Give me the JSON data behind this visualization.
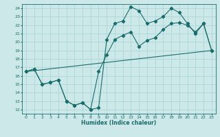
{
  "xlabel": "Humidex (Indice chaleur)",
  "xlim": [
    -0.5,
    23.5
  ],
  "ylim": [
    11.5,
    24.5
  ],
  "xticks": [
    0,
    1,
    2,
    3,
    4,
    5,
    6,
    7,
    8,
    9,
    10,
    11,
    12,
    13,
    14,
    15,
    16,
    17,
    18,
    19,
    20,
    21,
    22,
    23
  ],
  "yticks": [
    12,
    13,
    14,
    15,
    16,
    17,
    18,
    19,
    20,
    21,
    22,
    23,
    24
  ],
  "bg_color": "#cce8e8",
  "grid_color": "#b0d8d8",
  "line_color": "#1a6b6b",
  "line1_x": [
    0,
    1,
    2,
    3,
    4,
    5,
    6,
    7,
    8,
    9,
    10,
    11,
    12,
    13,
    14,
    15,
    16,
    17,
    18,
    19,
    20,
    21,
    22,
    23
  ],
  "line1_y": [
    16.5,
    16.8,
    15.0,
    15.2,
    15.5,
    13.0,
    12.5,
    12.8,
    12.0,
    12.2,
    20.3,
    22.2,
    22.5,
    24.2,
    23.7,
    22.2,
    22.5,
    23.0,
    24.0,
    23.5,
    22.2,
    21.0,
    22.2,
    19.0
  ],
  "line2_x": [
    0,
    1,
    2,
    3,
    4,
    5,
    6,
    7,
    8,
    9,
    10,
    11,
    12,
    13,
    14,
    15,
    16,
    17,
    18,
    19,
    20,
    21,
    22,
    23
  ],
  "line2_y": [
    16.5,
    16.8,
    15.0,
    15.2,
    15.5,
    13.0,
    12.5,
    12.8,
    12.0,
    16.5,
    18.5,
    20.3,
    20.8,
    21.2,
    19.5,
    20.2,
    20.5,
    21.5,
    22.2,
    22.3,
    22.0,
    21.2,
    22.2,
    19.0
  ],
  "line3_x": [
    0,
    23
  ],
  "line3_y": [
    16.5,
    19.0
  ]
}
